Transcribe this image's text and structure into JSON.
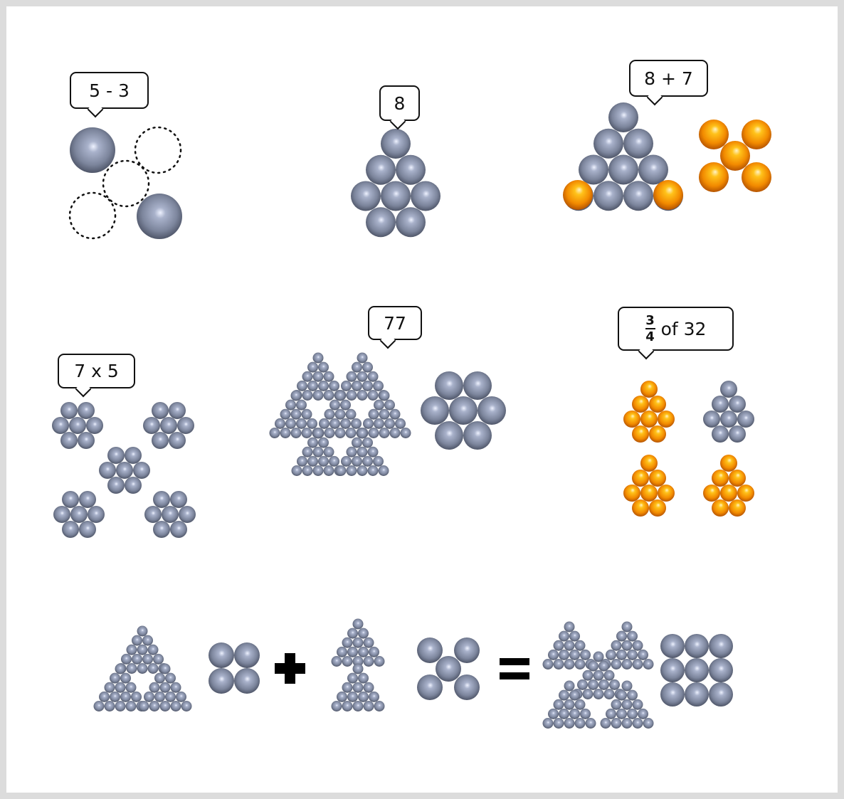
{
  "bubbles": {
    "subtract": "5 - 3",
    "eight": "8",
    "add": "8 + 7",
    "multiply": "7 x 5",
    "seventy_seven": "77",
    "fraction_numerator": "3",
    "fraction_denominator": "4",
    "fraction_rest": "of 32"
  },
  "colors": {
    "grey_ball": "#8a93a8",
    "orange_ball": "#f28a00",
    "frame": "#dcdcdc",
    "ink": "#111111"
  },
  "icons": [
    "plus-icon",
    "equals-icon"
  ]
}
